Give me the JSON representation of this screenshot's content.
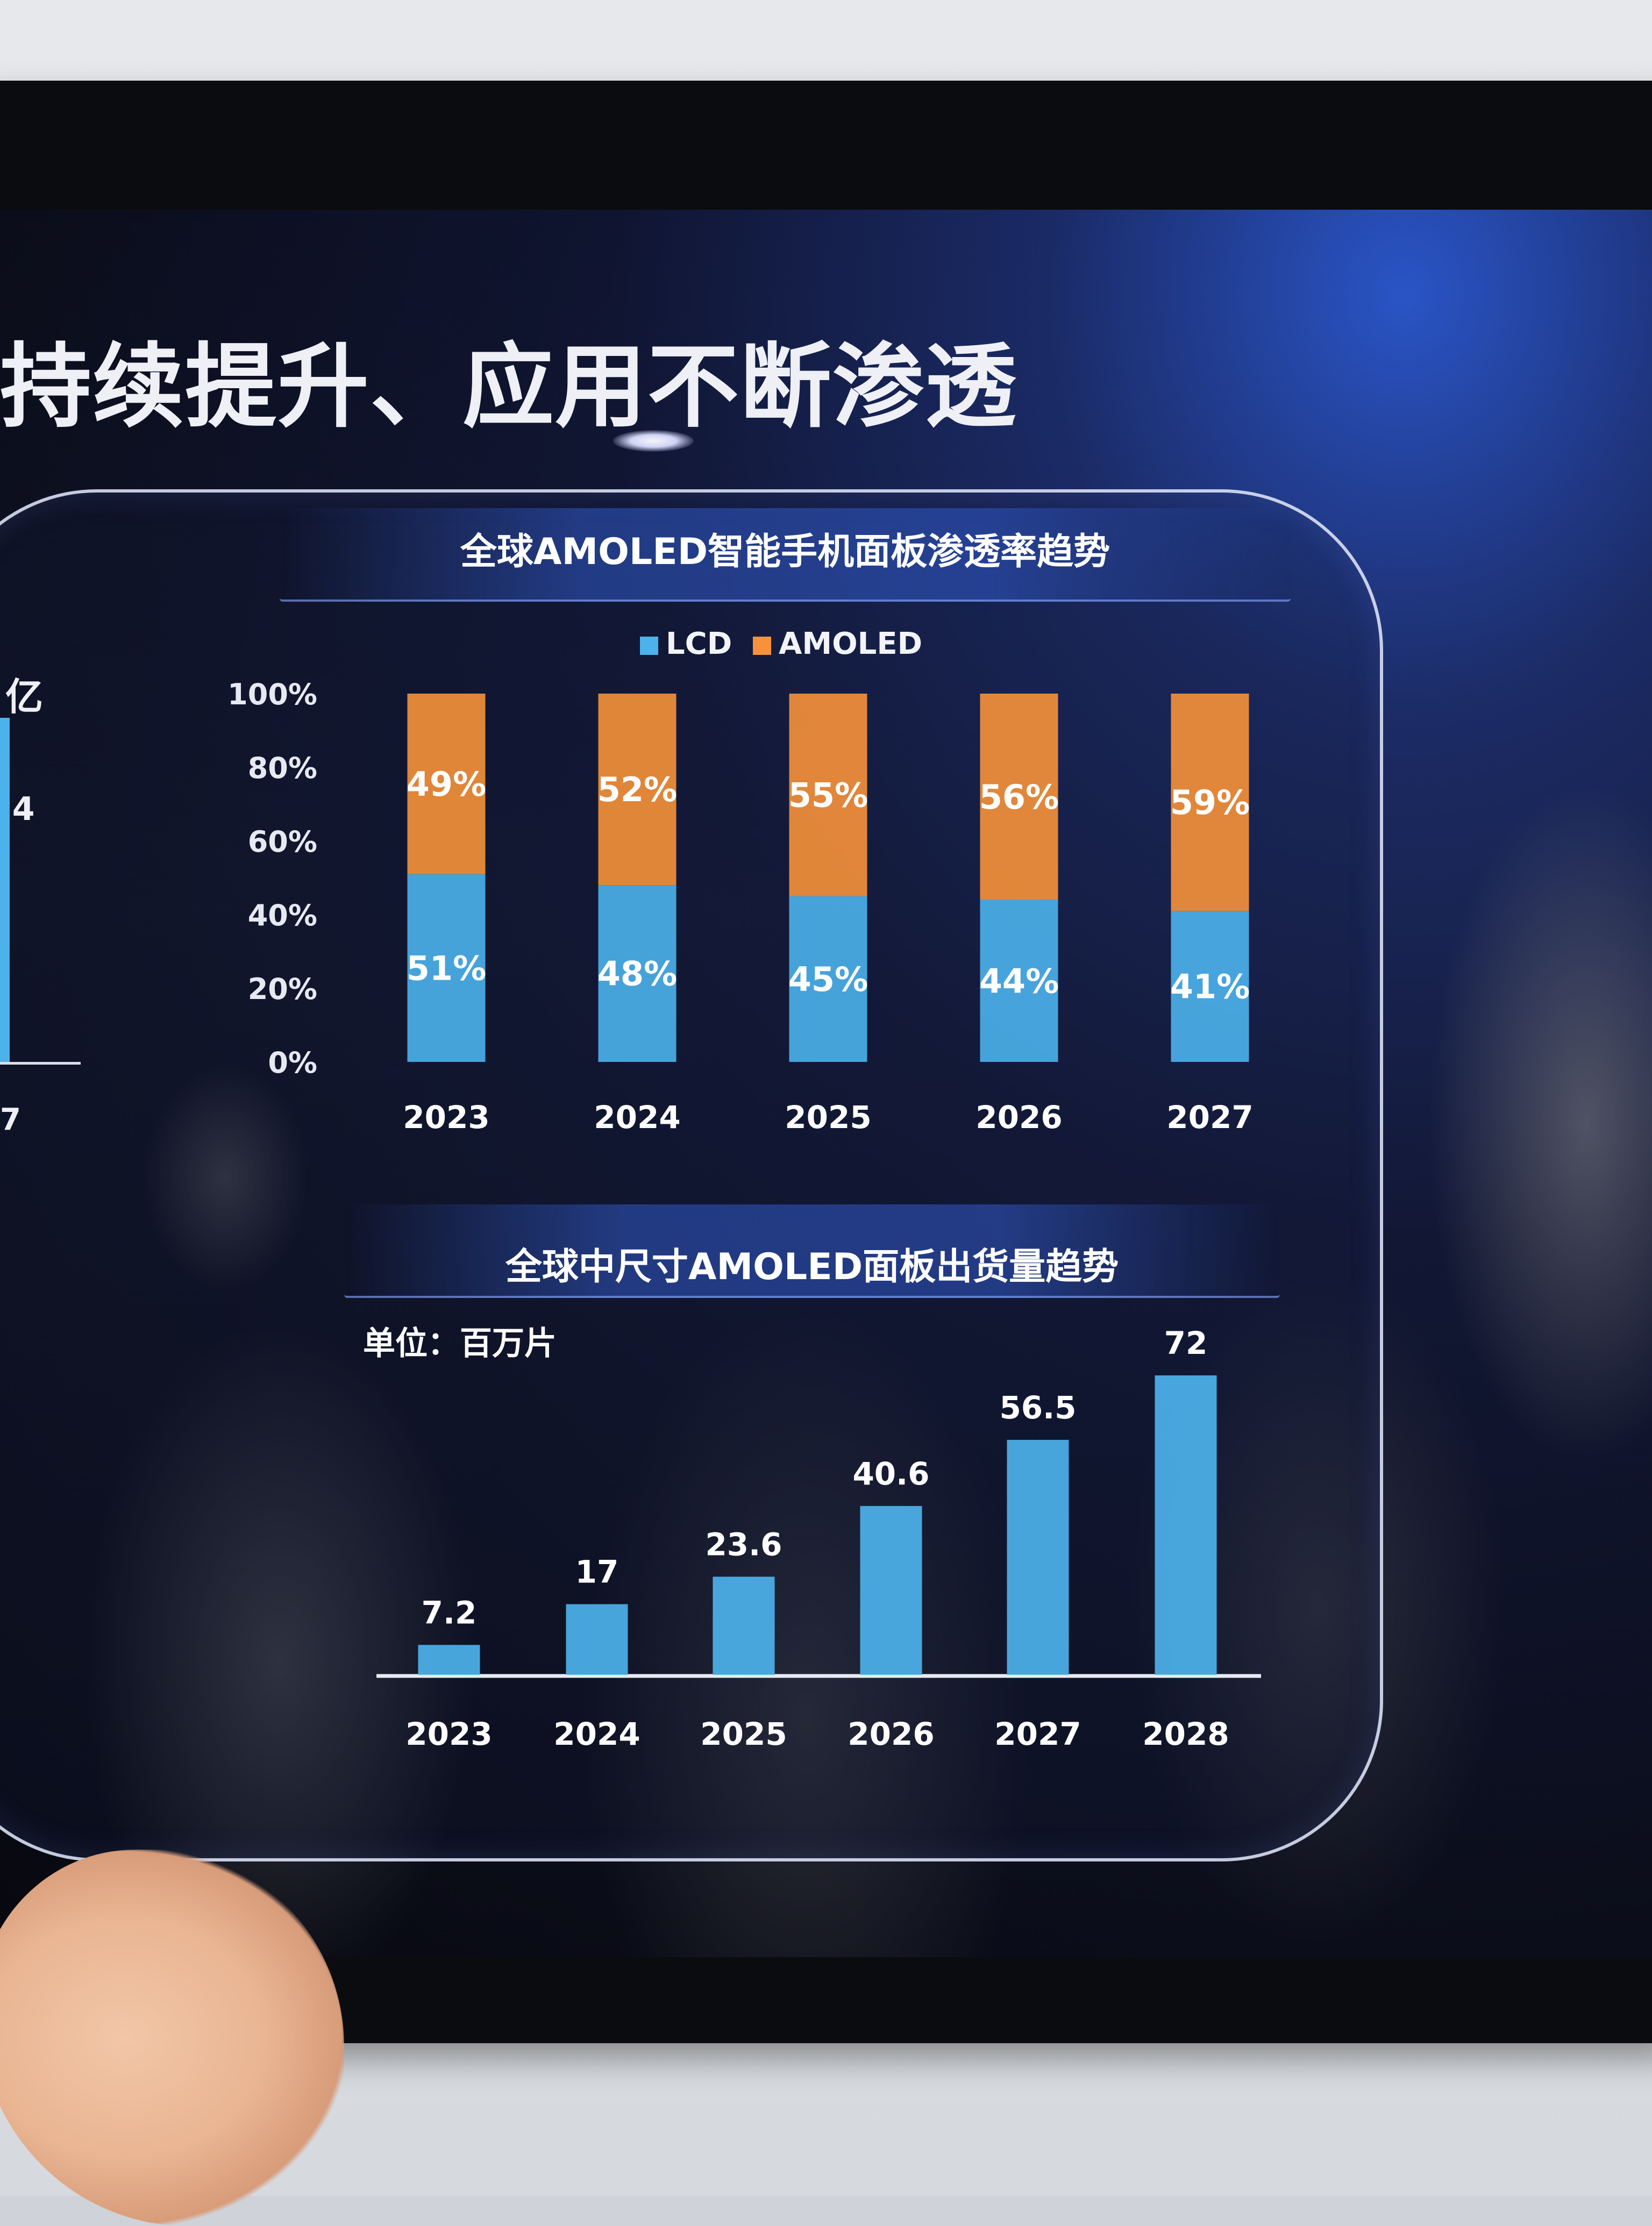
{
  "page_title": "持续提升、应用不断渗透",
  "left_fragment": {
    "unit_text": "亿",
    "value_text": ".4",
    "axis_text": "7"
  },
  "chart_data": [
    {
      "type": "bar",
      "stacked": true,
      "title": "全球AMOLED智能手机面板渗透率趋势",
      "categories": [
        "2023",
        "2024",
        "2025",
        "2026",
        "2027"
      ],
      "series": [
        {
          "name": "LCD",
          "color": "#4db2ec",
          "values": [
            51,
            48,
            45,
            44,
            41
          ],
          "labels": [
            "51%",
            "48%",
            "45%",
            "44%",
            "41%"
          ]
        },
        {
          "name": "AMOLED",
          "color": "#f7923a",
          "values": [
            49,
            52,
            55,
            56,
            59
          ],
          "labels": [
            "49%",
            "52%",
            "55%",
            "56%",
            "59%"
          ]
        }
      ],
      "yticks": [
        "0%",
        "20%",
        "40%",
        "60%",
        "80%",
        "100%"
      ],
      "ylim": [
        0,
        100
      ],
      "legend_position": "top"
    },
    {
      "type": "bar",
      "title": "全球中尺寸AMOLED面板出货量趋势",
      "unit_label": "单位：百万片",
      "categories": [
        "2023",
        "2024",
        "2025",
        "2026",
        "2027",
        "2028"
      ],
      "values": [
        7.2,
        17,
        23.6,
        40.6,
        56.5,
        72
      ],
      "labels": [
        "7.2",
        "17",
        "23.6",
        "40.6",
        "56.5",
        "72"
      ],
      "color": "#4db2ec",
      "ylim": [
        0,
        72
      ]
    }
  ]
}
